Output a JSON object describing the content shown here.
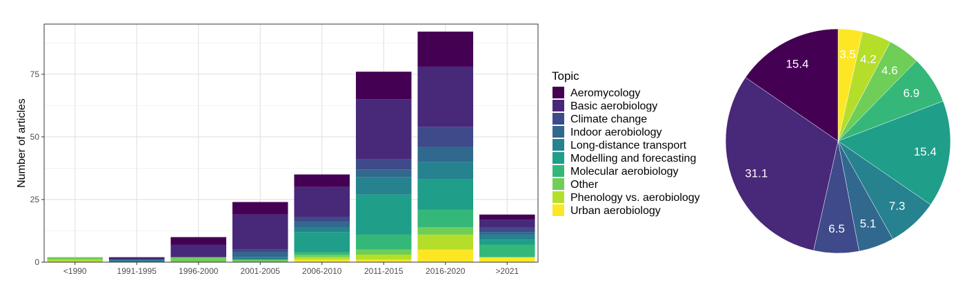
{
  "chart_data": [
    {
      "type": "bar",
      "stacked": true,
      "ylabel": "Number of articles",
      "xlabel": "",
      "ylim": [
        0,
        95
      ],
      "yticks": [
        "0",
        "25",
        "50",
        "75"
      ],
      "ytick_values": [
        0,
        25,
        50,
        75
      ],
      "grid": true,
      "legend_position": "right",
      "categories": [
        "<1990",
        "1991-1995",
        "1996-2000",
        "2001-2005",
        "2006-2010",
        "2011-2015",
        "2016-2020",
        ">2021"
      ],
      "series": [
        {
          "name": "Urban aerobiology",
          "color": "#FDE725",
          "values": [
            0,
            0,
            0,
            0,
            1,
            1,
            5,
            2
          ]
        },
        {
          "name": "Phenology vs. aerobiology",
          "color": "#B5DE2B",
          "values": [
            1,
            0,
            0,
            0,
            1,
            2,
            6,
            0
          ]
        },
        {
          "name": "Other",
          "color": "#6ECE58",
          "values": [
            1,
            0,
            2,
            1,
            1,
            2,
            3,
            0
          ]
        },
        {
          "name": "Molecular aerobiology",
          "color": "#35B779",
          "values": [
            0,
            0,
            0,
            0,
            1,
            6,
            7,
            5
          ]
        },
        {
          "name": "Modelling and forecasting",
          "color": "#1F9E89",
          "values": [
            0,
            0,
            0,
            0,
            8,
            16,
            12,
            2
          ]
        },
        {
          "name": "Long-distance transport",
          "color": "#26828E",
          "values": [
            0,
            1,
            0,
            1,
            2,
            7,
            7,
            2
          ]
        },
        {
          "name": "Indoor aerobiology",
          "color": "#31688E",
          "values": [
            0,
            0,
            0,
            2,
            2,
            3,
            6,
            1
          ]
        },
        {
          "name": "Climate change",
          "color": "#3E4A89",
          "values": [
            0,
            0,
            0,
            1,
            2,
            4,
            8,
            2
          ]
        },
        {
          "name": "Basic aerobiology",
          "color": "#482878",
          "values": [
            0,
            1,
            5,
            14,
            12,
            24,
            24,
            3
          ]
        },
        {
          "name": "Aeromycology",
          "color": "#440154",
          "values": [
            0,
            0,
            3,
            5,
            5,
            11,
            14,
            2
          ]
        }
      ]
    },
    {
      "type": "pie",
      "slices": [
        {
          "name": "Urban aerobiology",
          "value": 3.5,
          "label": "3.5",
          "color": "#FDE725"
        },
        {
          "name": "Phenology vs. aerobiology",
          "value": 4.2,
          "label": "4.2",
          "color": "#B5DE2B"
        },
        {
          "name": "Other",
          "value": 4.6,
          "label": "4.6",
          "color": "#6ECE58"
        },
        {
          "name": "Molecular aerobiology",
          "value": 6.9,
          "label": "6.9",
          "color": "#35B779"
        },
        {
          "name": "Modelling and forecasting",
          "value": 15.4,
          "label": "15.4",
          "color": "#1F9E89"
        },
        {
          "name": "Long-distance transport",
          "value": 7.3,
          "label": "7.3",
          "color": "#26828E"
        },
        {
          "name": "Indoor aerobiology",
          "value": 5.1,
          "label": "5.1",
          "color": "#31688E"
        },
        {
          "name": "Climate change",
          "value": 6.5,
          "label": "6.5",
          "color": "#3E4A89"
        },
        {
          "name": "Basic aerobiology",
          "value": 31.1,
          "label": "31.1",
          "color": "#482878"
        },
        {
          "name": "Aeromycology",
          "value": 15.4,
          "label": "15.4",
          "color": "#440154"
        }
      ]
    }
  ],
  "legend": {
    "title": "Topic",
    "items": [
      {
        "label": "Aeromycology",
        "color": "#440154"
      },
      {
        "label": "Basic aerobiology",
        "color": "#482878"
      },
      {
        "label": "Climate change",
        "color": "#3E4A89"
      },
      {
        "label": "Indoor aerobiology",
        "color": "#31688E"
      },
      {
        "label": "Long-distance transport",
        "color": "#26828E"
      },
      {
        "label": "Modelling and forecasting",
        "color": "#1F9E89"
      },
      {
        "label": "Molecular aerobiology",
        "color": "#35B779"
      },
      {
        "label": "Other",
        "color": "#6ECE58"
      },
      {
        "label": "Phenology vs. aerobiology",
        "color": "#B5DE2B"
      },
      {
        "label": "Urban aerobiology",
        "color": "#FDE725"
      }
    ]
  }
}
